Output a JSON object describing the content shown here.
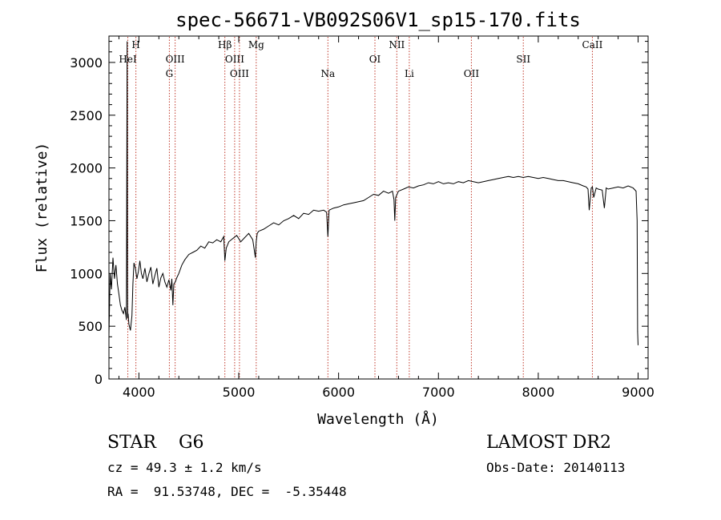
{
  "chart_data": {
    "type": "line",
    "title": "spec-56671-VB092S06V1_sp15-170.fits",
    "xlabel": "Wavelength (Å)",
    "ylabel": "Flux (relative)",
    "xlim": [
      3700,
      9100
    ],
    "ylim": [
      0,
      3250
    ],
    "xticks": [
      4000,
      5000,
      6000,
      7000,
      8000,
      9000
    ],
    "yticks": [
      0,
      500,
      1000,
      1500,
      2000,
      2500,
      3000
    ],
    "grid": false,
    "series": [
      {
        "x": [
          3700,
          3712,
          3725,
          3740,
          3755,
          3770,
          3785,
          3800,
          3815,
          3830,
          3845,
          3860,
          3875,
          3882,
          3885,
          3888,
          3892,
          3900,
          3915,
          3930,
          3940,
          3950,
          3965,
          3980,
          3995,
          4010,
          4025,
          4040,
          4060,
          4080,
          4100,
          4120,
          4140,
          4160,
          4180,
          4200,
          4220,
          4240,
          4260,
          4280,
          4300,
          4320,
          4330,
          4340,
          4350,
          4365,
          4380,
          4400,
          4430,
          4460,
          4500,
          4540,
          4580,
          4620,
          4660,
          4700,
          4740,
          4780,
          4820,
          4850,
          4861,
          4875,
          4900,
          4940,
          4980,
          5020,
          5060,
          5100,
          5140,
          5167,
          5175,
          5185,
          5200,
          5250,
          5300,
          5350,
          5400,
          5450,
          5500,
          5550,
          5600,
          5650,
          5700,
          5750,
          5800,
          5850,
          5880,
          5893,
          5905,
          5950,
          6000,
          6050,
          6100,
          6150,
          6200,
          6250,
          6300,
          6350,
          6400,
          6450,
          6500,
          6540,
          6555,
          6563,
          6572,
          6600,
          6650,
          6700,
          6750,
          6800,
          6850,
          6900,
          6950,
          7000,
          7050,
          7100,
          7150,
          7200,
          7250,
          7300,
          7350,
          7400,
          7450,
          7500,
          7550,
          7600,
          7650,
          7700,
          7750,
          7800,
          7850,
          7900,
          7950,
          8000,
          8050,
          8100,
          8150,
          8200,
          8250,
          8300,
          8350,
          8400,
          8450,
          8480,
          8498,
          8510,
          8530,
          8542,
          8555,
          8580,
          8600,
          8640,
          8662,
          8680,
          8700,
          8750,
          8800,
          8850,
          8900,
          8950,
          8980,
          8990,
          8995,
          9000
        ],
        "y": [
          420,
          1000,
          850,
          1150,
          950,
          1080,
          900,
          800,
          700,
          650,
          620,
          680,
          560,
          3200,
          900,
          580,
          620,
          520,
          460,
          600,
          900,
          1100,
          1050,
          950,
          1020,
          1120,
          1000,
          950,
          1050,
          920,
          1000,
          1060,
          900,
          980,
          1050,
          870,
          960,
          1000,
          920,
          870,
          940,
          840,
          950,
          700,
          900,
          920,
          960,
          1000,
          1080,
          1130,
          1180,
          1200,
          1220,
          1260,
          1240,
          1300,
          1290,
          1320,
          1300,
          1350,
          1120,
          1240,
          1300,
          1330,
          1360,
          1300,
          1340,
          1380,
          1320,
          1150,
          1300,
          1380,
          1400,
          1420,
          1450,
          1480,
          1460,
          1500,
          1520,
          1550,
          1520,
          1570,
          1560,
          1600,
          1590,
          1600,
          1580,
          1350,
          1600,
          1620,
          1630,
          1650,
          1660,
          1670,
          1680,
          1690,
          1720,
          1750,
          1740,
          1780,
          1760,
          1780,
          1700,
          1500,
          1720,
          1780,
          1800,
          1820,
          1810,
          1830,
          1840,
          1860,
          1850,
          1870,
          1850,
          1860,
          1850,
          1870,
          1860,
          1880,
          1870,
          1860,
          1870,
          1880,
          1890,
          1900,
          1910,
          1920,
          1910,
          1920,
          1910,
          1920,
          1910,
          1900,
          1910,
          1900,
          1890,
          1880,
          1880,
          1870,
          1860,
          1850,
          1830,
          1820,
          1800,
          1600,
          1810,
          1820,
          1720,
          1810,
          1800,
          1790,
          1620,
          1810,
          1800,
          1810,
          1820,
          1810,
          1830,
          1810,
          1780,
          1500,
          450,
          320
        ]
      }
    ],
    "lines": [
      {
        "label": "H",
        "x": 3970,
        "row": 0
      },
      {
        "label": "HeI",
        "x": 3889,
        "row": 1
      },
      {
        "label": "OIII",
        "x": 4363,
        "row": 1
      },
      {
        "label": "G",
        "x": 4305,
        "row": 2
      },
      {
        "label": "Hβ",
        "x": 4861,
        "row": 0
      },
      {
        "label": "OIII",
        "x": 4959,
        "row": 1
      },
      {
        "label": "OIII",
        "x": 5007,
        "row": 2
      },
      {
        "label": "Mg",
        "x": 5175,
        "row": 0
      },
      {
        "label": "Na",
        "x": 5893,
        "row": 2
      },
      {
        "label": "OI",
        "x": 6364,
        "row": 1
      },
      {
        "label": "NII",
        "x": 6583,
        "row": 0
      },
      {
        "label": "Li",
        "x": 6708,
        "row": 2
      },
      {
        "label": "OII",
        "x": 7330,
        "row": 2
      },
      {
        "label": "SII",
        "x": 7850,
        "row": 1
      },
      {
        "label": "CaII",
        "x": 8542,
        "row": 0
      }
    ]
  },
  "info": {
    "class_line": "STAR    G6",
    "survey": "LAMOST DR2",
    "cz": "cz = 49.3 ± 1.2 km/s",
    "obs_date": "Obs-Date: 20140113",
    "coords": "RA =  91.53748, DEC =  -5.35448"
  }
}
